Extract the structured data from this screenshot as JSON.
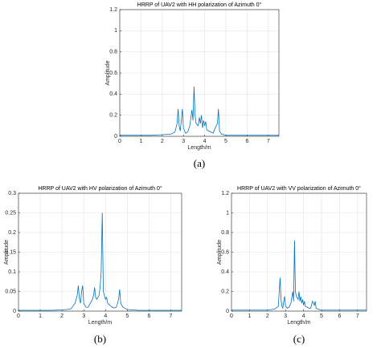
{
  "chart_data": [
    {
      "type": "line",
      "title": "HRRP of UAV2 with HH polarization of Azimuth 0°",
      "xlabel": "Length/m",
      "ylabel": "Amplitude",
      "caption": "(a)",
      "grid": true,
      "color": "#0072bd",
      "xlim": [
        0,
        7.5
      ],
      "xticks": [
        0,
        1,
        2,
        3,
        4,
        5,
        6,
        7
      ],
      "ylim": [
        0,
        1.2
      ],
      "yticks": [
        0,
        0.2,
        0.4,
        0.6,
        0.8,
        1,
        1.2
      ],
      "x": [
        0,
        0.5,
        1,
        1.5,
        2,
        2.4,
        2.6,
        2.7,
        2.75,
        2.8,
        2.85,
        2.9,
        2.95,
        3.0,
        3.1,
        3.2,
        3.3,
        3.4,
        3.45,
        3.5,
        3.55,
        3.6,
        3.7,
        3.75,
        3.8,
        3.85,
        3.9,
        3.95,
        4.0,
        4.05,
        4.1,
        4.2,
        4.3,
        4.4,
        4.5,
        4.6,
        4.65,
        4.7,
        4.8,
        5.0,
        5.5,
        6,
        6.5,
        7,
        7.5
      ],
      "values": [
        0.01,
        0.01,
        0.01,
        0.01,
        0.015,
        0.02,
        0.04,
        0.12,
        0.26,
        0.1,
        0.05,
        0.15,
        0.26,
        0.08,
        0.03,
        0.04,
        0.1,
        0.25,
        0.15,
        0.47,
        0.2,
        0.12,
        0.1,
        0.18,
        0.12,
        0.2,
        0.08,
        0.15,
        0.1,
        0.14,
        0.06,
        0.05,
        0.04,
        0.03,
        0.08,
        0.12,
        0.26,
        0.05,
        0.02,
        0.01,
        0.01,
        0.01,
        0.01,
        0.01,
        0.01
      ]
    },
    {
      "type": "line",
      "title": "HRRP of UAV2 with HV polarization of Azimuth 0°",
      "xlabel": "Length/m",
      "ylabel": "Amplitude",
      "caption": "(b)",
      "grid": true,
      "color": "#0072bd",
      "xlim": [
        0,
        7.5
      ],
      "xticks": [
        0,
        1,
        2,
        3,
        4,
        5,
        6,
        7
      ],
      "ylim": [
        0,
        0.3
      ],
      "yticks": [
        0,
        0.05,
        0.1,
        0.15,
        0.2,
        0.25,
        0.3
      ],
      "x": [
        0,
        0.5,
        1,
        1.5,
        2,
        2.4,
        2.6,
        2.7,
        2.75,
        2.8,
        2.85,
        2.9,
        2.95,
        3.0,
        3.1,
        3.2,
        3.3,
        3.4,
        3.45,
        3.5,
        3.55,
        3.6,
        3.7,
        3.75,
        3.8,
        3.85,
        3.9,
        3.95,
        4.0,
        4.05,
        4.1,
        4.2,
        4.3,
        4.4,
        4.5,
        4.6,
        4.65,
        4.7,
        4.8,
        5.0,
        5.5,
        6,
        6.5,
        7,
        7.5
      ],
      "values": [
        0.002,
        0.002,
        0.002,
        0.002,
        0.003,
        0.005,
        0.02,
        0.04,
        0.065,
        0.03,
        0.02,
        0.05,
        0.065,
        0.02,
        0.01,
        0.01,
        0.02,
        0.03,
        0.04,
        0.06,
        0.035,
        0.03,
        0.04,
        0.06,
        0.1,
        0.25,
        0.05,
        0.04,
        0.03,
        0.035,
        0.02,
        0.015,
        0.01,
        0.008,
        0.01,
        0.03,
        0.055,
        0.02,
        0.01,
        0.004,
        0.002,
        0.002,
        0.002,
        0.002,
        0.002
      ]
    },
    {
      "type": "line",
      "title": "HRRP of UAV2 with VV polarization of Azimuth 0°",
      "xlabel": "Length/m",
      "ylabel": "Amplitude",
      "caption": "(c)",
      "grid": true,
      "color": "#0072bd",
      "xlim": [
        0,
        7.5
      ],
      "xticks": [
        0,
        1,
        2,
        3,
        4,
        5,
        6,
        7
      ],
      "ylim": [
        0,
        1.2
      ],
      "yticks": [
        0,
        0.2,
        0.4,
        0.6,
        0.8,
        1,
        1.2
      ],
      "x": [
        0,
        0.5,
        1,
        1.5,
        2,
        2.4,
        2.6,
        2.7,
        2.75,
        2.8,
        2.85,
        2.9,
        2.95,
        3.0,
        3.1,
        3.2,
        3.3,
        3.4,
        3.45,
        3.5,
        3.55,
        3.6,
        3.7,
        3.75,
        3.8,
        3.85,
        3.9,
        3.95,
        4.0,
        4.05,
        4.1,
        4.2,
        4.3,
        4.4,
        4.5,
        4.6,
        4.65,
        4.7,
        4.8,
        5.0,
        5.5,
        6,
        6.5,
        7,
        7.5
      ],
      "values": [
        0.01,
        0.01,
        0.01,
        0.01,
        0.01,
        0.02,
        0.05,
        0.34,
        0.12,
        0.05,
        0.03,
        0.1,
        0.15,
        0.05,
        0.03,
        0.04,
        0.08,
        0.2,
        0.1,
        0.72,
        0.2,
        0.15,
        0.12,
        0.2,
        0.1,
        0.15,
        0.08,
        0.12,
        0.06,
        0.1,
        0.05,
        0.04,
        0.03,
        0.03,
        0.1,
        0.06,
        0.1,
        0.03,
        0.02,
        0.01,
        0.01,
        0.01,
        0.01,
        0.01,
        0.01
      ]
    }
  ]
}
